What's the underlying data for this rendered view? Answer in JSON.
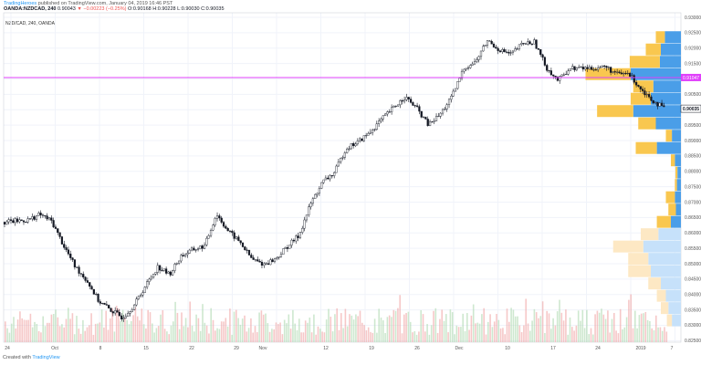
{
  "header": {
    "publisher": "TradingHeroes",
    "published_text": "published on TradingView.com, January 04, 2019 16:46 PST"
  },
  "symbol_line": {
    "name": "OANDA:NZDCAD, 240",
    "last": "0.90043",
    "change": "▼ −0.00223 (−0.25%)",
    "ohlc": "O:0.90168 H:0.90228 L:0.90030 C:0.90035"
  },
  "legend": {
    "text": "NZD/CAD, 240, OANDA"
  },
  "footer": {
    "created_with": "Created with",
    "brand": "TradingView"
  },
  "colors": {
    "up": "#26a69a",
    "down": "#ef5350",
    "candle": "#131722",
    "vol_up": "#a5d6a7",
    "vol_down": "#ef9a9a",
    "profile_buy": "#f9c74f",
    "profile_sell": "#4a9ee8",
    "profile_buy_faded": "#fde8c4",
    "profile_sell_faded": "#c6e1fa",
    "hline": "#e040fb"
  },
  "chart_data": {
    "type": "candlestick",
    "title": "NZD/CAD, 240, OANDA",
    "x_tick_labels": [
      "24",
      "Oct",
      "8",
      "15",
      "22",
      "29",
      "Nov",
      "12",
      "19",
      "26",
      "Dec",
      "10",
      "17",
      "24",
      "2019",
      "7"
    ],
    "y_tick_labels": [
      "0.93000",
      "0.92500",
      "0.92000",
      "0.91500",
      "0.91000",
      "0.90500",
      "0.90000",
      "0.89500",
      "0.89000",
      "0.88500",
      "0.88000",
      "0.87500",
      "0.87000",
      "0.86500",
      "0.86000",
      "0.85500",
      "0.85000",
      "0.84500",
      "0.84000",
      "0.83500",
      "0.83000",
      "0.82500"
    ],
    "ylim": [
      0.8245,
      0.9315
    ],
    "last_price_label": "0.90035",
    "horizontal_line_label": "0.91047",
    "horizontal_line_value": 0.91047,
    "close_path": [
      [
        0,
        0.8635
      ],
      [
        2,
        0.8642
      ],
      [
        3,
        0.866
      ],
      [
        4,
        0.8638
      ],
      [
        5,
        0.856
      ],
      [
        6,
        0.849
      ],
      [
        7,
        0.8445
      ],
      [
        8,
        0.8378
      ],
      [
        9,
        0.835
      ],
      [
        10,
        0.8325
      ],
      [
        11,
        0.8365
      ],
      [
        12,
        0.843
      ],
      [
        13,
        0.849
      ],
      [
        14,
        0.8465
      ],
      [
        15,
        0.8525
      ],
      [
        16,
        0.8545
      ],
      [
        17,
        0.8558
      ],
      [
        18,
        0.8662
      ],
      [
        19,
        0.8605
      ],
      [
        20,
        0.857
      ],
      [
        21,
        0.8515
      ],
      [
        22,
        0.8498
      ],
      [
        23,
        0.8515
      ],
      [
        24,
        0.8555
      ],
      [
        25,
        0.8592
      ],
      [
        26,
        0.8695
      ],
      [
        27,
        0.8765
      ],
      [
        28,
        0.8795
      ],
      [
        29,
        0.8875
      ],
      [
        30,
        0.8895
      ],
      [
        31,
        0.8925
      ],
      [
        32,
        0.8968
      ],
      [
        33,
        0.9005
      ],
      [
        34,
        0.9042
      ],
      [
        35,
        0.9005
      ],
      [
        36,
        0.895
      ],
      [
        37,
        0.8985
      ],
      [
        38,
        0.9042
      ],
      [
        39,
        0.9135
      ],
      [
        40,
        0.9155
      ],
      [
        41,
        0.9225
      ],
      [
        42,
        0.9195
      ],
      [
        43,
        0.918
      ],
      [
        44,
        0.9215
      ],
      [
        45,
        0.922
      ],
      [
        46,
        0.9138
      ],
      [
        47,
        0.9095
      ],
      [
        48,
        0.9135
      ],
      [
        49,
        0.9135
      ],
      [
        50,
        0.9135
      ],
      [
        51,
        0.914
      ],
      [
        52,
        0.9115
      ],
      [
        53,
        0.9118
      ],
      [
        54,
        0.907
      ],
      [
        55,
        0.9032
      ],
      [
        56,
        0.90035
      ]
    ],
    "volume_profile": [
      {
        "price": 0.9235,
        "buy": 18,
        "sell": 32
      },
      {
        "price": 0.9195,
        "buy": 30,
        "sell": 40
      },
      {
        "price": 0.9155,
        "buy": 60,
        "sell": 42
      },
      {
        "price": 0.9115,
        "buy": 90,
        "sell": 100
      },
      {
        "price": 0.9075,
        "buy": 40,
        "sell": 55
      },
      {
        "price": 0.9035,
        "buy": 40,
        "sell": 60
      },
      {
        "price": 0.8995,
        "buy": 72,
        "sell": 95
      },
      {
        "price": 0.8955,
        "buy": 35,
        "sell": 50
      },
      {
        "price": 0.8915,
        "buy": 12,
        "sell": 18
      },
      {
        "price": 0.8875,
        "buy": 42,
        "sell": 48
      },
      {
        "price": 0.8835,
        "buy": 8,
        "sell": 12
      },
      {
        "price": 0.8795,
        "buy": 4,
        "sell": 7
      },
      {
        "price": 0.8755,
        "buy": 4,
        "sell": 8
      },
      {
        "price": 0.8715,
        "buy": 18,
        "sell": 12
      },
      {
        "price": 0.8675,
        "buy": 15,
        "sell": 10
      },
      {
        "price": 0.8635,
        "buy": 28,
        "sell": 20
      },
      {
        "price": 0.8595,
        "buy": 35,
        "sell": 45
      },
      {
        "price": 0.8555,
        "buy": 60,
        "sell": 75
      },
      {
        "price": 0.8515,
        "buy": 40,
        "sell": 65
      },
      {
        "price": 0.8475,
        "buy": 45,
        "sell": 60
      },
      {
        "price": 0.8435,
        "buy": 25,
        "sell": 40
      },
      {
        "price": 0.8395,
        "buy": 18,
        "sell": 30
      },
      {
        "price": 0.8355,
        "buy": 15,
        "sell": 25
      },
      {
        "price": 0.8315,
        "buy": 10,
        "sell": 18
      }
    ]
  }
}
